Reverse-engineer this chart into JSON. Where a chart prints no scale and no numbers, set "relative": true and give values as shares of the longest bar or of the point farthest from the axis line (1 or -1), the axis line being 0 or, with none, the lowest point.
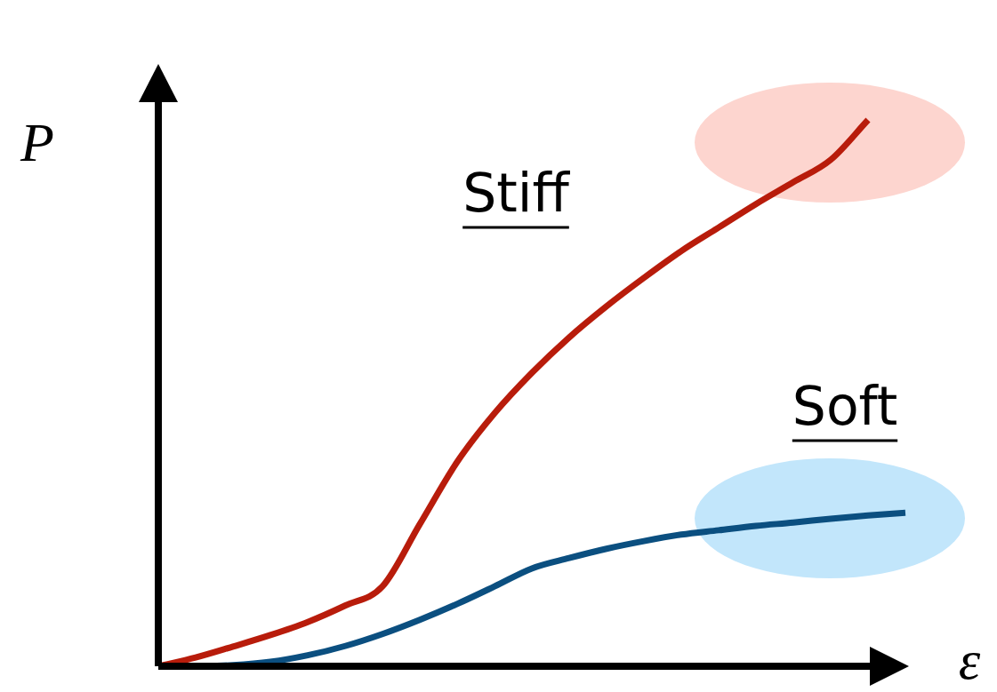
{
  "chart_data": {
    "type": "line",
    "relative": true,
    "xlabel": "ε",
    "ylabel": "P",
    "categories": [
      null,
      null,
      null,
      null,
      null,
      null,
      null,
      null,
      null,
      null,
      null,
      null,
      null,
      null,
      null,
      null,
      null,
      null,
      null,
      null,
      null
    ],
    "series": [
      {
        "name": "Stiff",
        "color": "#b81c0b",
        "values": [
          0,
          0.016,
          0.036,
          0.057,
          0.081,
          0.111,
          0.146,
          0.26,
          0.374,
          0.463,
          0.537,
          0.602,
          0.659,
          0.711,
          0.76,
          0.803,
          0.846,
          0.886,
          0.927,
          1,
          null
        ]
      },
      {
        "name": "Soft",
        "color": "#0b4f80",
        "values": [
          0,
          0,
          0.002,
          0.008,
          0.02,
          0.037,
          0.059,
          0.085,
          0.114,
          0.146,
          0.179,
          0.198,
          0.215,
          0.229,
          0.241,
          0.249,
          0.257,
          0.263,
          0.27,
          0.276,
          0.281
        ]
      }
    ],
    "legend": false,
    "grid": false,
    "marker": "none",
    "line_style": "solid"
  }
}
